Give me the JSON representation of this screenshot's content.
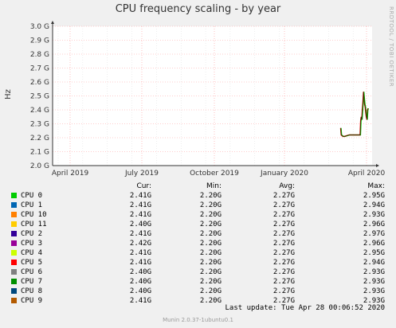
{
  "chart_data": {
    "type": "line",
    "title": "CPU frequency scaling - by year",
    "ylabel": "Hz",
    "xlabel": "",
    "x_ticks": [
      "April 2019",
      "July 2019",
      "October 2019",
      "January 2020",
      "April 2020"
    ],
    "y_ticks": [
      "2.0 G",
      "2.1 G",
      "2.2 G",
      "2.3 G",
      "2.4 G",
      "2.5 G",
      "2.6 G",
      "2.7 G",
      "2.8 G",
      "2.9 G",
      "3.0 G"
    ],
    "ylim": [
      2.0,
      3.0
    ],
    "grid": true,
    "x_range_weeks": [
      0,
      56
    ],
    "x": [
      50.5,
      50.6,
      50.9,
      51.2,
      52.0,
      52.8,
      53.5,
      53.9,
      54.0,
      54.1,
      54.2,
      54.3,
      54.4,
      54.5,
      54.6,
      54.7,
      54.8,
      54.9,
      55.0,
      55.1,
      55.2,
      55.3
    ],
    "series": [
      {
        "name": "CPU 0",
        "values": [
          2.27,
          2.22,
          2.21,
          2.21,
          2.22,
          2.22,
          2.22,
          2.22,
          2.32,
          2.35,
          2.33,
          2.4,
          2.45,
          2.53,
          2.48,
          2.44,
          2.42,
          2.38,
          2.35,
          2.33,
          2.4,
          2.41
        ]
      }
    ],
    "legend": {
      "columns": [
        "Cur:",
        "Min:",
        "Avg:",
        "Max:"
      ],
      "rows": [
        {
          "name": "CPU 0",
          "color": "#00cc00",
          "cur": "2.41G",
          "min": "2.20G",
          "avg": "2.27G",
          "max": "2.95G"
        },
        {
          "name": "CPU 1",
          "color": "#0066b3",
          "cur": "2.41G",
          "min": "2.20G",
          "avg": "2.27G",
          "max": "2.94G"
        },
        {
          "name": "CPU 10",
          "color": "#ff8000",
          "cur": "2.41G",
          "min": "2.20G",
          "avg": "2.27G",
          "max": "2.93G"
        },
        {
          "name": "CPU 11",
          "color": "#ffcc00",
          "cur": "2.40G",
          "min": "2.20G",
          "avg": "2.27G",
          "max": "2.96G"
        },
        {
          "name": "CPU 2",
          "color": "#330099",
          "cur": "2.41G",
          "min": "2.20G",
          "avg": "2.27G",
          "max": "2.97G"
        },
        {
          "name": "CPU 3",
          "color": "#990099",
          "cur": "2.42G",
          "min": "2.20G",
          "avg": "2.27G",
          "max": "2.96G"
        },
        {
          "name": "CPU 4",
          "color": "#ccff00",
          "cur": "2.41G",
          "min": "2.20G",
          "avg": "2.27G",
          "max": "2.95G"
        },
        {
          "name": "CPU 5",
          "color": "#ff0000",
          "cur": "2.41G",
          "min": "2.20G",
          "avg": "2.27G",
          "max": "2.94G"
        },
        {
          "name": "CPU 6",
          "color": "#808080",
          "cur": "2.40G",
          "min": "2.20G",
          "avg": "2.27G",
          "max": "2.93G"
        },
        {
          "name": "CPU 7",
          "color": "#008f00",
          "cur": "2.40G",
          "min": "2.20G",
          "avg": "2.27G",
          "max": "2.93G"
        },
        {
          "name": "CPU 8",
          "color": "#00487d",
          "cur": "2.40G",
          "min": "2.20G",
          "avg": "2.27G",
          "max": "2.93G"
        },
        {
          "name": "CPU 9",
          "color": "#b35a00",
          "cur": "2.41G",
          "min": "2.20G",
          "avg": "2.27G",
          "max": "2.93G"
        }
      ]
    }
  },
  "watermark": "RRDTOOL / TOBI OETIKER",
  "last_update": "Last update: Tue Apr 28 00:06:52 2020",
  "footer": "Munin 2.0.37-1ubuntu0.1",
  "colors": {
    "background": "#f0f0f0",
    "plot_bg": "#ffffff",
    "grid_major": "#ff9999",
    "grid_minor": "#dddddd",
    "trace_dark": "#3d2a00"
  }
}
